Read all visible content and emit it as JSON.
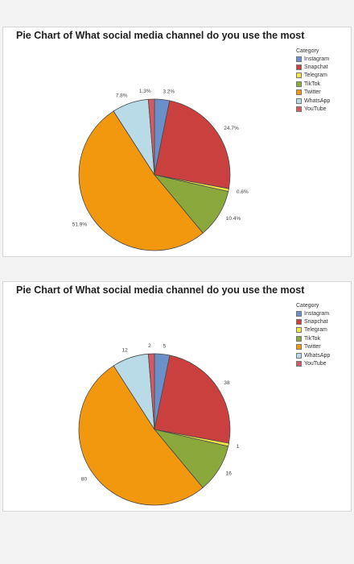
{
  "chart_data": [
    {
      "type": "pie",
      "title": "Pie Chart of  What social media channel do you use the most",
      "legend_title": "Category",
      "legend_position": "top-right",
      "categories": [
        "Instagram",
        "Snapchat",
        "Telegram",
        "TikTok",
        "Twitter",
        "WhatsApp",
        "YouTube"
      ],
      "colors": [
        "#6b8fc9",
        "#c9403f",
        "#f5e646",
        "#8aa83c",
        "#f2980f",
        "#b9dbe8",
        "#d25a62"
      ],
      "values": [
        3.2,
        24.7,
        0.6,
        10.4,
        51.9,
        7.8,
        1.3
      ],
      "labels": [
        "3.2%",
        "24.7%",
        "0.6%",
        "10.4%",
        "51.9%",
        "7.8%",
        "1.3%"
      ]
    },
    {
      "type": "pie",
      "title": "Pie Chart of  What social media channel do you use the most",
      "legend_title": "Category",
      "legend_position": "top-right",
      "categories": [
        "Instagram",
        "Snapchat",
        "Telegram",
        "TikTok",
        "Twitter",
        "WhatsApp",
        "YouTube"
      ],
      "colors": [
        "#6b8fc9",
        "#c9403f",
        "#f5e646",
        "#8aa83c",
        "#f2980f",
        "#b9dbe8",
        "#d25a62"
      ],
      "values": [
        5,
        38,
        1,
        16,
        80,
        12,
        2
      ],
      "labels": [
        "5",
        "38",
        "1",
        "16",
        "80",
        "12",
        "2"
      ]
    }
  ]
}
